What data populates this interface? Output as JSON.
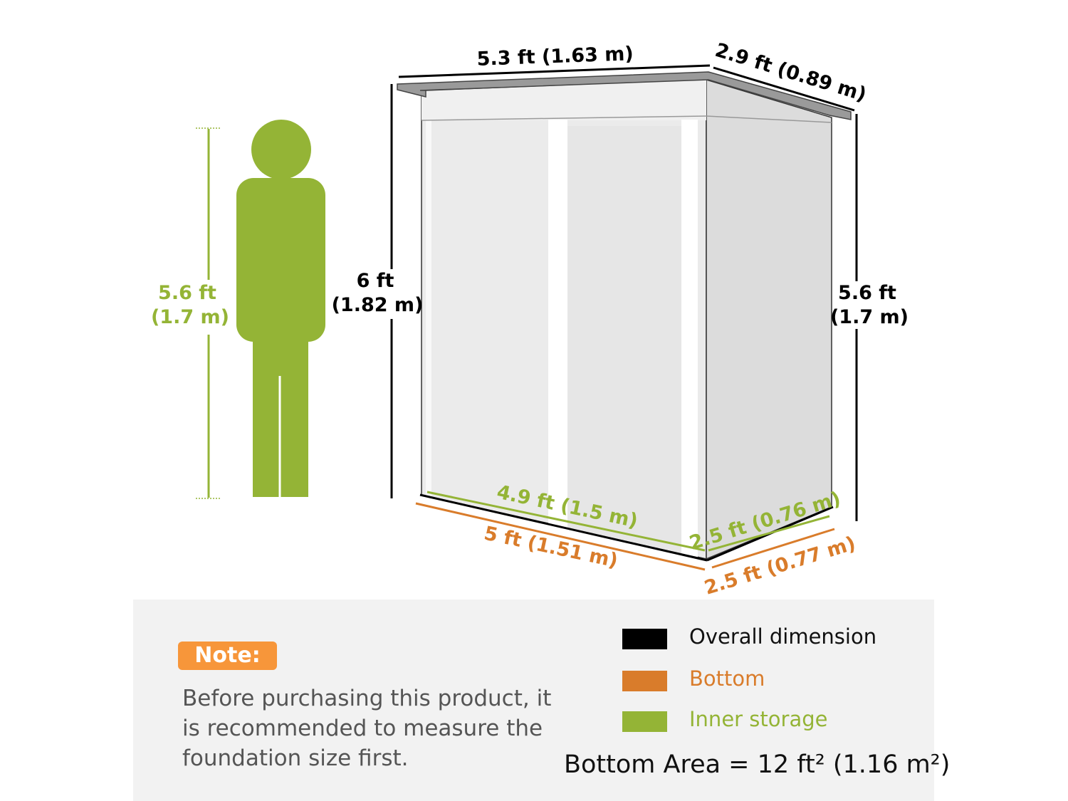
{
  "colors": {
    "overall": "#000000",
    "bottom": "#d97c2b",
    "inner": "#94b436",
    "note_badge": "#f7963a",
    "panel": "#f2f2f2"
  },
  "person": {
    "height_ft": "5.6 ft",
    "height_m": "(1.7 m)"
  },
  "shed": {
    "top_width": "5.3 ft (1.63 m)",
    "top_depth": "2.9 ft (0.89 m)",
    "front_height_ft": "6 ft",
    "front_height_m": "(1.82 m)",
    "back_height_ft": "5.6 ft",
    "back_height_m": "(1.7 m)",
    "inner_width": "4.9 ft (1.5 m)",
    "inner_depth": "2.5 ft (0.76 m)",
    "bottom_width": "5 ft (1.51 m)",
    "bottom_depth": "2.5 ft (0.77 m)"
  },
  "note": {
    "label": "Note:",
    "text": "Before purchasing this product, it is recommended to measure the foundation size first."
  },
  "legend": [
    {
      "label": "Overall dimension",
      "color": "#000000"
    },
    {
      "label": "Bottom",
      "color": "#d97c2b"
    },
    {
      "label": "Inner storage",
      "color": "#94b436"
    }
  ],
  "bottom_area": "Bottom Area = 12 ft² (1.16 m²)"
}
